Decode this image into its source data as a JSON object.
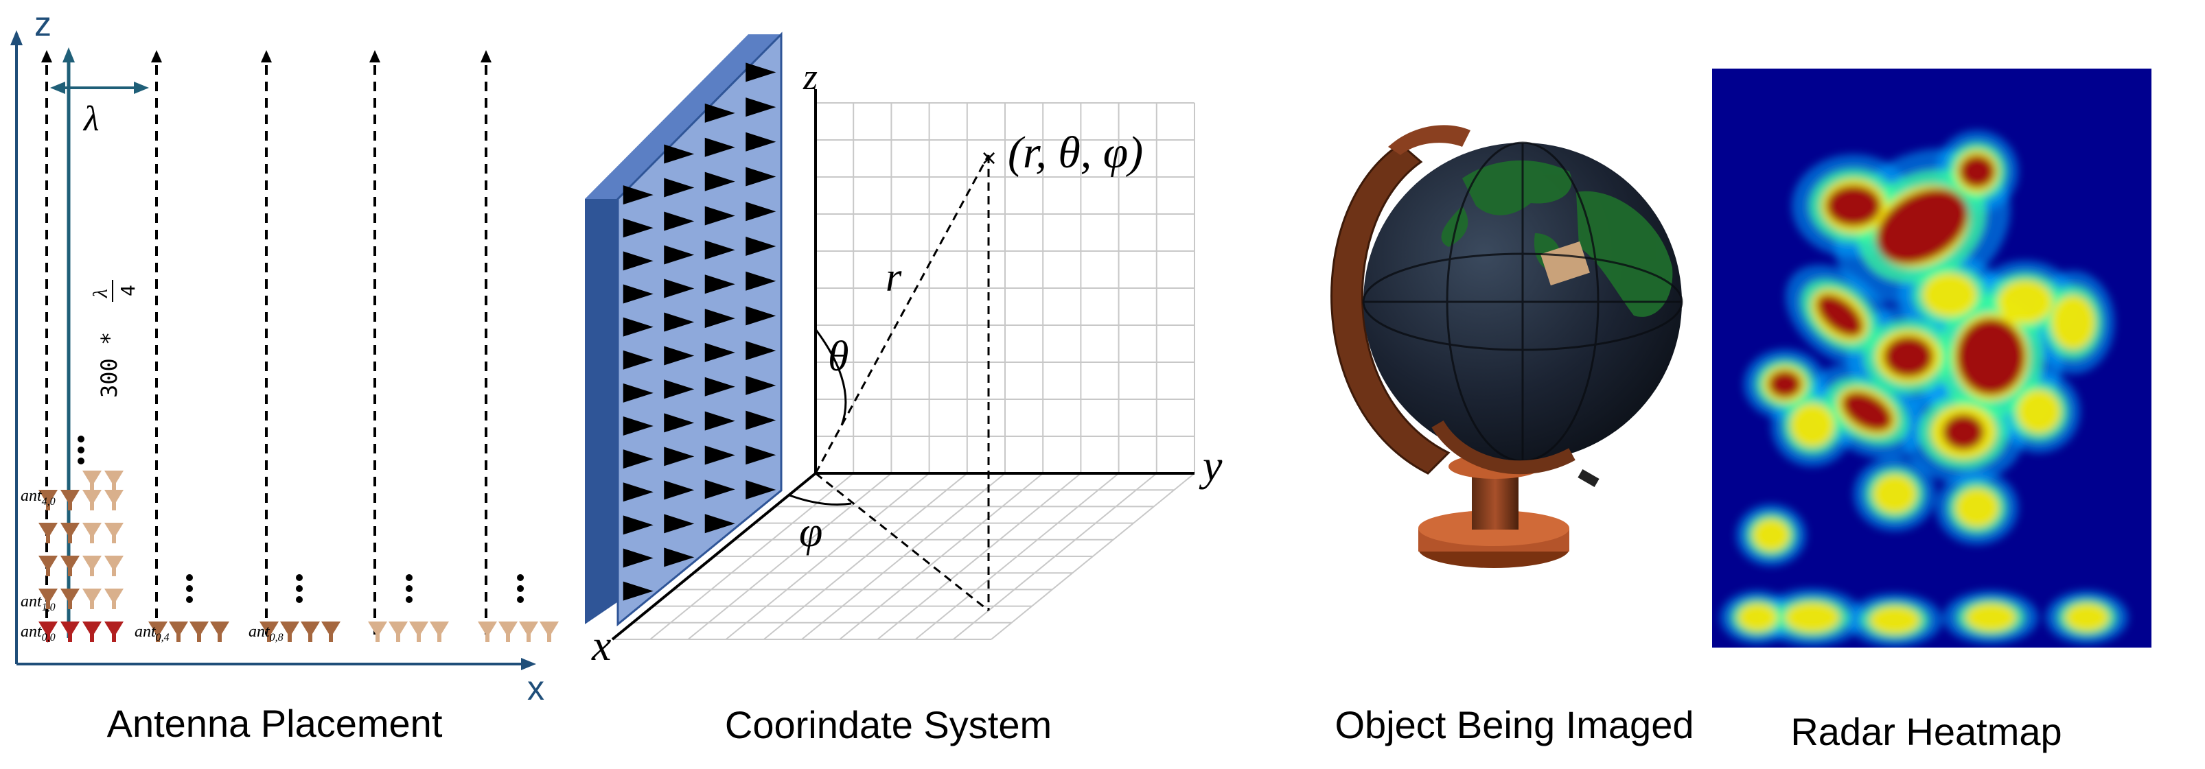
{
  "panels": {
    "antenna": {
      "caption": "Antenna Placement",
      "z_label": "z",
      "x_label": "x",
      "lambda_label": "λ",
      "spacing_label": "300 * λ/4",
      "spacing_prefix": "300 *",
      "spacing_num": "λ",
      "spacing_den": "4",
      "ant_labels": [
        {
          "base": "ant",
          "sub": "4,0"
        },
        {
          "base": "ant",
          "sub": "1,0"
        },
        {
          "base": "ant",
          "sub": "0,0"
        },
        {
          "base": "ant",
          "sub": "0,4"
        },
        {
          "base": "ant",
          "sub": "0,8"
        }
      ],
      "colors": {
        "axis": "#1f4e79",
        "dark_red": "#b11f1f",
        "brown": "#a5673f",
        "tan": "#d9b08c"
      }
    },
    "coordinate": {
      "caption": "Coorindate System",
      "z_label": "z",
      "y_label": "y",
      "x_label": "x",
      "r_label": "r",
      "theta_label": "θ",
      "phi_label": "φ",
      "point_label": "(r, θ, φ)",
      "colors": {
        "panel": "#8ea9db",
        "panel_side": "#2f5597"
      }
    },
    "object": {
      "caption": "Object Being Imaged"
    },
    "heatmap": {
      "caption": "Radar Heatmap"
    }
  }
}
